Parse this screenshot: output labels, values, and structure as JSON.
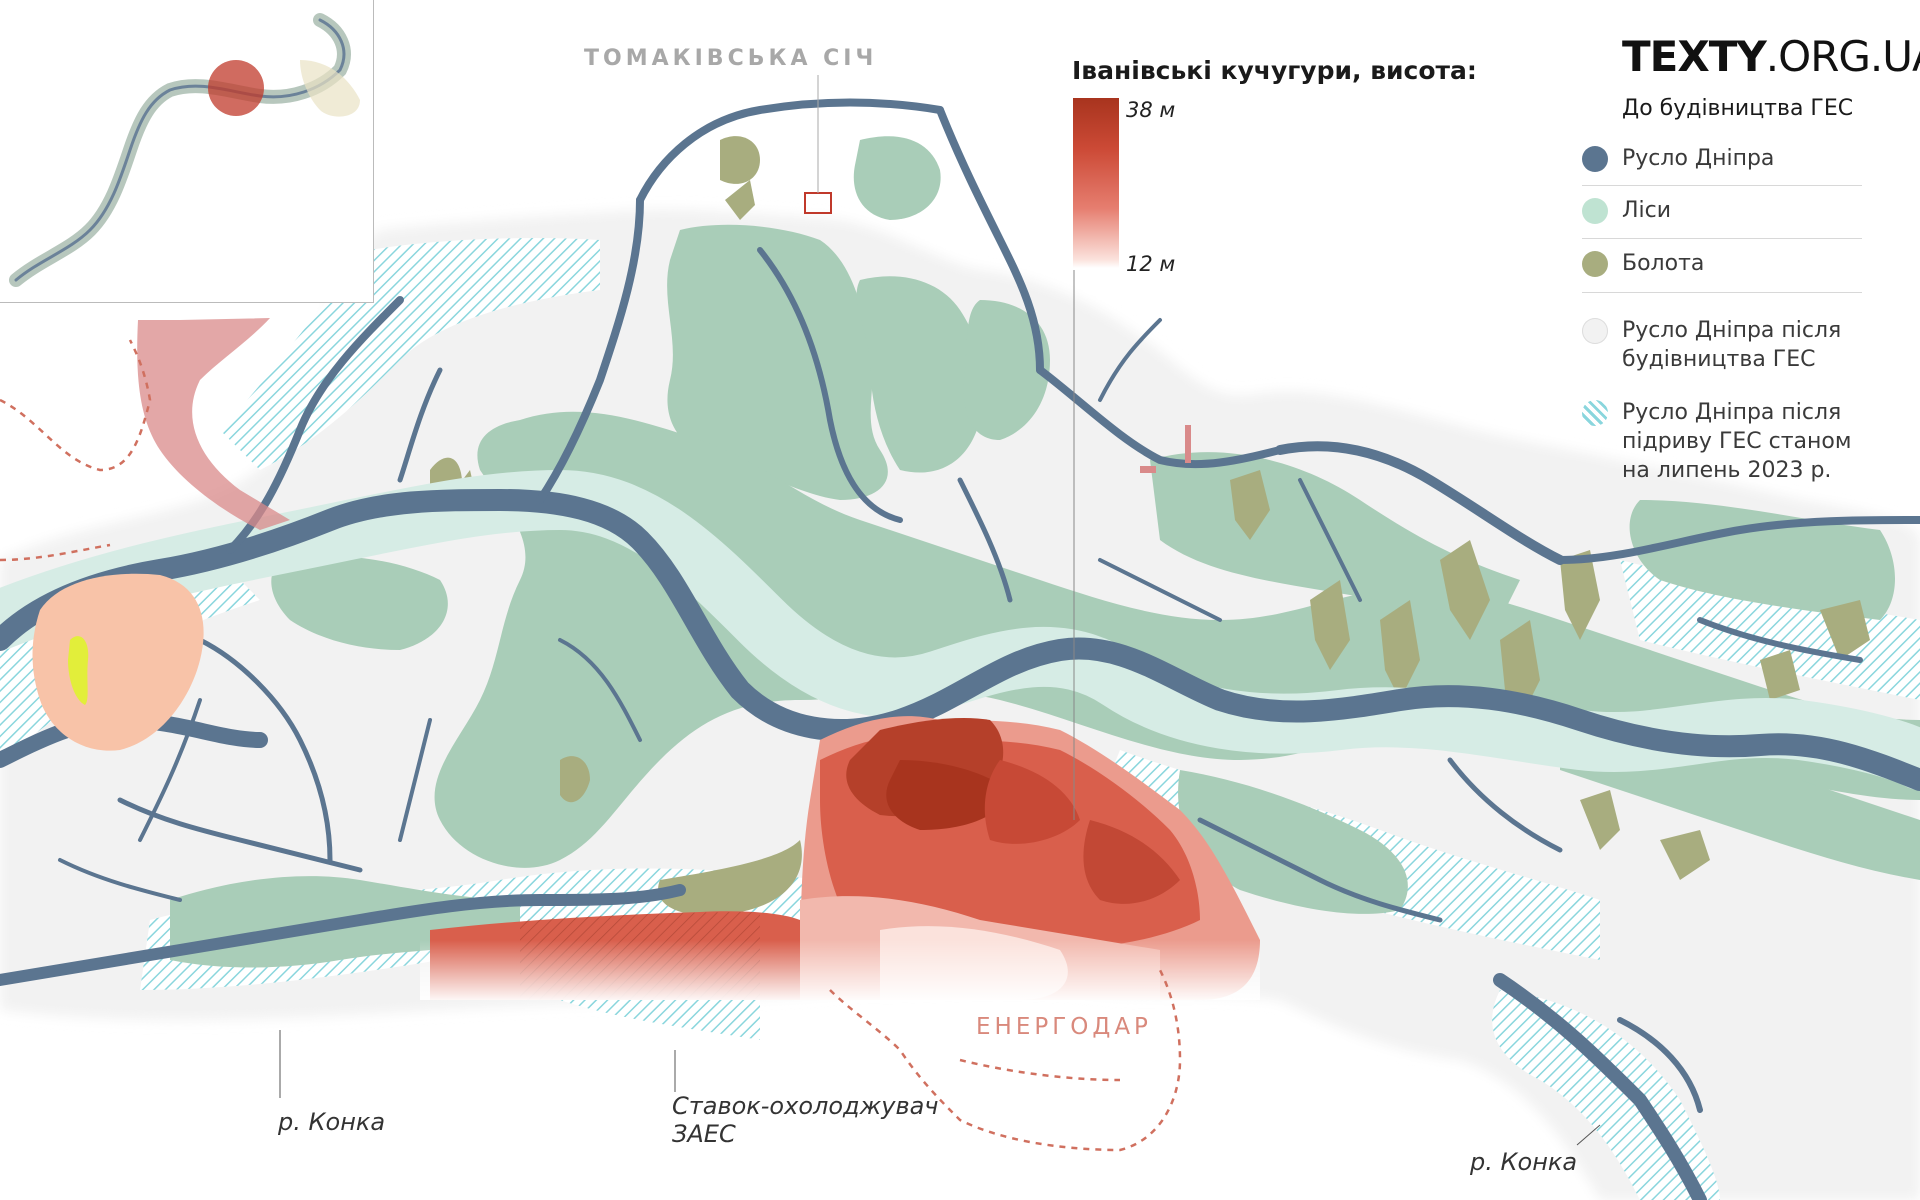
{
  "brand": {
    "part1": "TEXTY",
    "part2": ".ORG.UA"
  },
  "legend": {
    "heading": "До будівництва ГЕС",
    "items": [
      {
        "label": "Русло Дніпра",
        "color": "#5b7590",
        "icon": "filled-circle"
      },
      {
        "label": "Ліси",
        "color": "#bfe3d2",
        "icon": "filled-circle"
      },
      {
        "label": "Болота",
        "color": "#a8ad7f",
        "icon": "filled-circle"
      },
      {
        "label": "Русло Дніпра після будівництва ГЕС",
        "color": "#f2f2f2",
        "icon": "outline-circle"
      },
      {
        "label": "Русло Дніпра після підриву ГЕС станом на липень 2023 р.",
        "color": "#7fd3dc",
        "icon": "hatched-circle"
      }
    ]
  },
  "elevation_scale": {
    "title": "Іванівські кучугури, висота:",
    "max_label": "38 м",
    "min_label": "12 м",
    "max_color": "#a8341e",
    "min_color": "#fbe2dc"
  },
  "places": {
    "sich": "ТОМАКІВСЬКА СІЧ",
    "city": "ЕНЕРГОДАР",
    "konka_west": "р. Конка",
    "konka_east": "р. Конка",
    "pond_line1": "Ставок-охолоджувач",
    "pond_line2": "ЗАЕС"
  },
  "colors": {
    "river": "#5b7590",
    "forest": "#a9cdb8",
    "swamp": "#a8ad7f",
    "post_dam": "#f2f2f2",
    "hatch": "#7fd3dc",
    "place_gray": "#a8a8a8",
    "city_red": "#d9897c",
    "boundary": "#d0705f",
    "sand_peach": "#f8c3a8",
    "sand_yellow": "#e2ee3a"
  }
}
